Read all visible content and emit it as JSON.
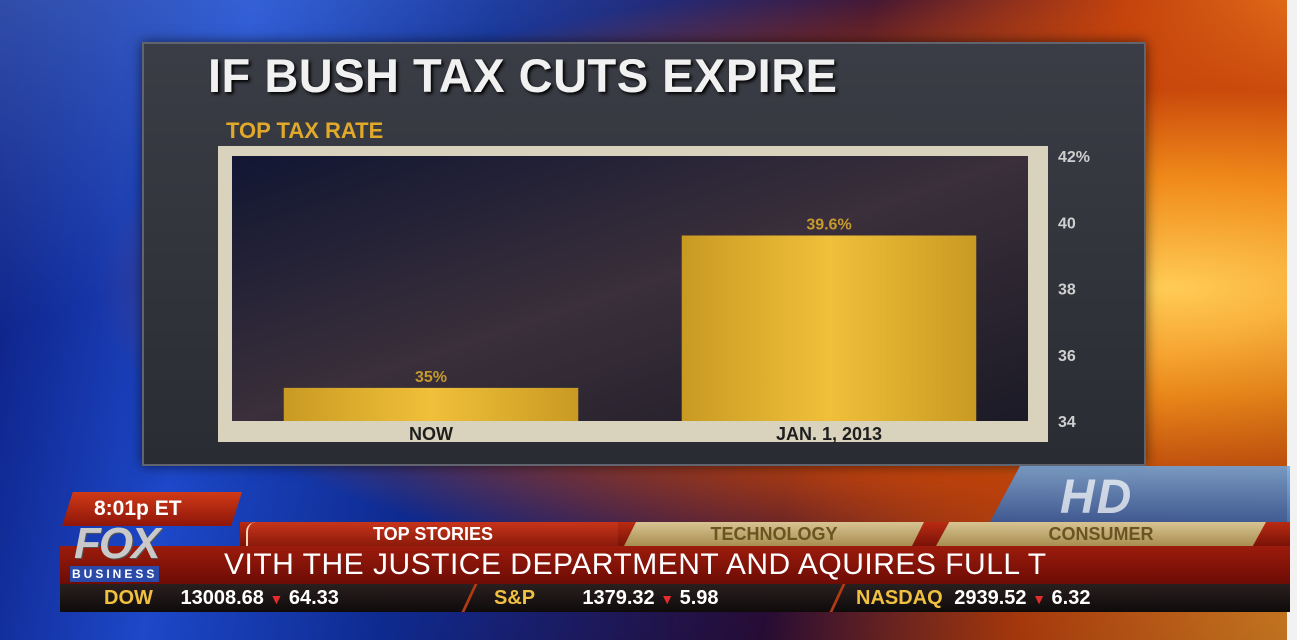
{
  "header": {
    "title": "IF BUSH TAX CUTS EXPIRE",
    "subtitle": "TOP TAX RATE"
  },
  "chart_data": {
    "type": "bar",
    "title": "IF BUSH TAX CUTS EXPIRE",
    "subtitle": "TOP TAX RATE",
    "categories": [
      "NOW",
      "JAN. 1, 2013"
    ],
    "values": [
      35,
      39.6
    ],
    "value_labels": [
      "35%",
      "39.6%"
    ],
    "ylim": [
      34,
      42
    ],
    "yticks": [
      34,
      36,
      38,
      40,
      42
    ],
    "ytick_labels": [
      "34",
      "36",
      "38",
      "40",
      "42%"
    ],
    "y_axis_side": "right",
    "grid": false,
    "legend": "none",
    "bar_color": "#e3b32e"
  },
  "ticker": {
    "time": "8:01p ET",
    "tabs": [
      "TOP STORIES",
      "TECHNOLOGY",
      "CONSUMER"
    ],
    "headline": "VITH THE JUSTICE DEPARTMENT AND AQUIRES FULL T",
    "logo_main": "FOX",
    "logo_sub": "BUSINESS",
    "hd_label": "HD",
    "stocks": [
      {
        "name": "DOW",
        "value": "13008.68",
        "change": "64.33"
      },
      {
        "name": "S&P",
        "value": "1379.32",
        "change": "5.98"
      },
      {
        "name": "NASDAQ",
        "value": "2939.52",
        "change": "6.32"
      }
    ]
  },
  "colors": {
    "bar": "#e3b32e",
    "subtitle": "#e0a92a",
    "ticker_red": "#9c1b0c",
    "down_arrow": "#e52c2c"
  }
}
